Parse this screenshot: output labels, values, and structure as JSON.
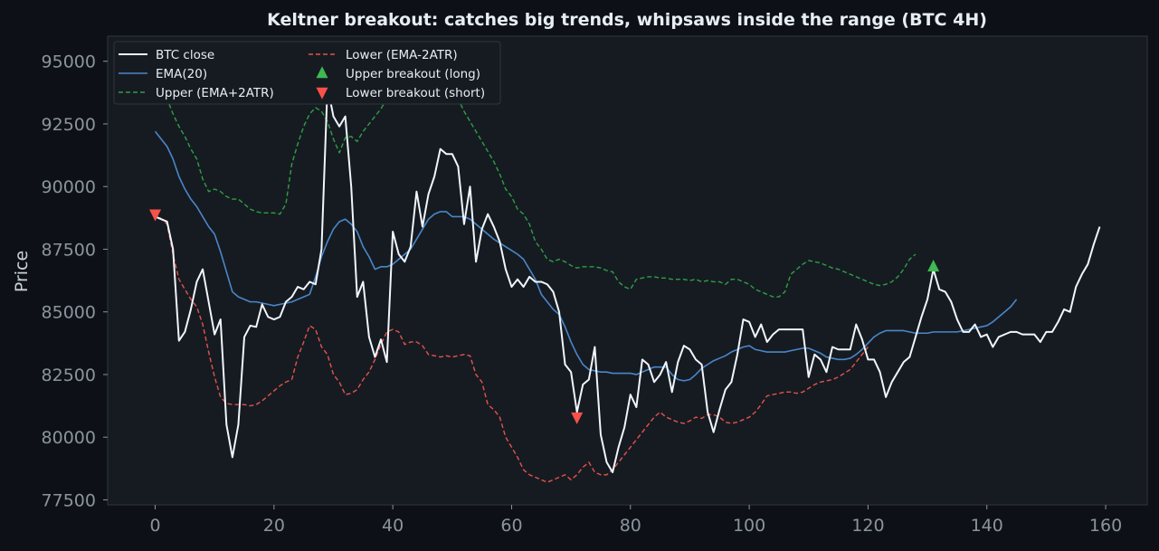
{
  "chart_data": {
    "type": "line",
    "title": "Keltner breakout: catches big trends, whipsaws inside the range (BTC 4H)",
    "xlabel": "",
    "ylabel": "Price",
    "xlim": [
      -8,
      167
    ],
    "ylim": [
      77300,
      96000
    ],
    "x_ticks": [
      0,
      20,
      40,
      60,
      80,
      100,
      120,
      140,
      160
    ],
    "y_ticks": [
      77500,
      80000,
      82500,
      85000,
      87500,
      90000,
      92500,
      95000
    ],
    "grid": false,
    "legend_position": "top-left",
    "colors": {
      "background": "#0d1117",
      "plot_background": "#161b22",
      "spine": "#30363d",
      "tick_text": "#8b949e",
      "title_text": "#e6edf3",
      "close": "#f0f6fc",
      "ema": "#4a86c8",
      "upper": "#2ea043",
      "lower": "#e5534b",
      "marker_long": "#3fb950",
      "marker_short": "#f85149"
    },
    "series": [
      {
        "name": "BTC close",
        "style": "solid",
        "values": [
          88800,
          88700,
          88600,
          87500,
          83850,
          84200,
          85100,
          86200,
          86700,
          85400,
          84100,
          84700,
          80500,
          79200,
          80500,
          84000,
          84450,
          84400,
          85300,
          84800,
          84700,
          84800,
          85400,
          85600,
          86000,
          85900,
          86200,
          86100,
          87500,
          94000,
          92800,
          92400,
          92800,
          90000,
          85600,
          86200,
          84000,
          83200,
          83900,
          83000,
          88200,
          87300,
          87000,
          87600,
          89800,
          88400,
          89700,
          90400,
          91500,
          91300,
          91300,
          90800,
          88500,
          90000,
          87000,
          88300,
          88900,
          88400,
          87800,
          86700,
          86000,
          86300,
          86000,
          86400,
          86200,
          86200,
          86100,
          85800,
          85000,
          82900,
          82600,
          81000,
          82100,
          82300,
          83600,
          80100,
          79000,
          78600,
          79600,
          80400,
          81700,
          81200,
          83100,
          82900,
          82200,
          82500,
          83000,
          81800,
          83000,
          83650,
          83500,
          83100,
          82900,
          81000,
          80200,
          81100,
          81900,
          82200,
          83300,
          84700,
          84600,
          84000,
          84500,
          83800,
          84100,
          84300,
          84300,
          84300,
          84300,
          84300,
          82400,
          83300,
          83100,
          82600,
          83600,
          83500,
          83500,
          83500,
          84500,
          83900,
          83100,
          83100,
          82600,
          81600,
          82200,
          82600,
          83000,
          83200,
          84000,
          84800,
          85500,
          86700,
          85900,
          85800,
          85400,
          84700,
          84200,
          84200,
          84500,
          84000,
          84100,
          83600,
          84000,
          84100,
          84200,
          84200,
          84100,
          84100,
          84100,
          83800,
          84200,
          84200,
          84600,
          85100,
          85000,
          86000,
          86500,
          86900,
          87700,
          88400
        ]
      },
      {
        "name": "EMA(20)",
        "style": "solid",
        "values": [
          92200,
          91900,
          91600,
          91100,
          90400,
          89900,
          89500,
          89200,
          88800,
          88400,
          88100,
          87400,
          86600,
          85800,
          85600,
          85500,
          85400,
          85400,
          85350,
          85300,
          85250,
          85300,
          85350,
          85400,
          85500,
          85600,
          85700,
          86400,
          87200,
          87800,
          88300,
          88600,
          88700,
          88500,
          88200,
          87600,
          87200,
          86700,
          86800,
          86800,
          86900,
          87100,
          87300,
          87500,
          87900,
          88300,
          88700,
          88900,
          89000,
          89000,
          88800,
          88800,
          88800,
          88700,
          88500,
          88300,
          88100,
          87900,
          87750,
          87600,
          87450,
          87300,
          87100,
          86700,
          86300,
          85700,
          85400,
          85100,
          84900,
          84400,
          83800,
          83300,
          82900,
          82700,
          82650,
          82600,
          82600,
          82550,
          82550,
          82550,
          82550,
          82500,
          82600,
          82700,
          82800,
          82800,
          82800,
          82500,
          82300,
          82250,
          82300,
          82500,
          82750,
          82900,
          83050,
          83150,
          83250,
          83400,
          83500,
          83600,
          83650,
          83500,
          83450,
          83400,
          83400,
          83400,
          83400,
          83450,
          83500,
          83550,
          83550,
          83450,
          83350,
          83200,
          83150,
          83100,
          83100,
          83150,
          83300,
          83500,
          83750,
          84000,
          84150,
          84250,
          84250,
          84250,
          84250,
          84200,
          84150,
          84150,
          84150,
          84200,
          84200,
          84200,
          84200,
          84200,
          84250,
          84300,
          84350,
          84400,
          84450,
          84600,
          84800,
          85000,
          85200,
          85500
        ]
      },
      {
        "name": "Upper (EMA+2ATR)",
        "style": "dashed",
        "values": [
          94300,
          94000,
          93500,
          92900,
          92400,
          92000,
          91500,
          91100,
          90300,
          89800,
          89900,
          89800,
          89600,
          89500,
          89500,
          89300,
          89100,
          89000,
          88950,
          88950,
          88950,
          88900,
          89300,
          90900,
          91700,
          92400,
          92900,
          93150,
          93000,
          92600,
          91900,
          91350,
          91950,
          92000,
          91800,
          92200,
          92500,
          92800,
          93100,
          93500,
          94000,
          94300,
          94600,
          94800,
          94900,
          95000,
          94800,
          94600,
          94300,
          94100,
          93800,
          93500,
          93000,
          92600,
          92200,
          91800,
          91400,
          91000,
          90500,
          89900,
          89600,
          89100,
          88900,
          88500,
          87800,
          87500,
          87100,
          87000,
          87100,
          87000,
          86850,
          86750,
          86800,
          86800,
          86800,
          86750,
          86650,
          86600,
          86200,
          86000,
          85900,
          86300,
          86350,
          86400,
          86400,
          86350,
          86350,
          86300,
          86300,
          86300,
          86250,
          86300,
          86200,
          86250,
          86200,
          86200,
          86100,
          86300,
          86300,
          86200,
          86100,
          85900,
          85800,
          85700,
          85600,
          85600,
          85800,
          86500,
          86700,
          86900,
          87050,
          87000,
          86950,
          86850,
          86750,
          86700,
          86600,
          86500,
          86400,
          86300,
          86200,
          86100,
          86050,
          86100,
          86200,
          86400,
          86700,
          87100,
          87300
        ]
      },
      {
        "name": "Lower (EMA-2ATR)",
        "style": "dashed",
        "values": [
          89000,
          88700,
          88500,
          87300,
          86300,
          85900,
          85500,
          85200,
          84500,
          83400,
          82400,
          81600,
          81350,
          81300,
          81300,
          81300,
          81250,
          81300,
          81450,
          81650,
          81850,
          82050,
          82200,
          82300,
          83200,
          83800,
          84450,
          84300,
          83600,
          83300,
          82500,
          82200,
          81700,
          81750,
          81900,
          82300,
          82600,
          83100,
          83700,
          84200,
          84300,
          84200,
          83700,
          83800,
          83800,
          83650,
          83300,
          83250,
          83200,
          83250,
          83200,
          83250,
          83300,
          83250,
          82500,
          82200,
          81300,
          81100,
          80800,
          80000,
          79600,
          79200,
          78700,
          78500,
          78400,
          78300,
          78200,
          78300,
          78400,
          78500,
          78300,
          78500,
          78800,
          79000,
          78600,
          78500,
          78500,
          78700,
          79000,
          79300,
          79600,
          79900,
          80200,
          80500,
          80800,
          81000,
          80800,
          80700,
          80600,
          80550,
          80650,
          80800,
          80750,
          80900,
          80900,
          80800,
          80600,
          80550,
          80600,
          80700,
          80800,
          81000,
          81300,
          81650,
          81700,
          81750,
          81800,
          81800,
          81750,
          81800,
          81950,
          82100,
          82200,
          82250,
          82300,
          82400,
          82550,
          82700,
          83000,
          83300,
          83600
        ]
      }
    ],
    "markers": [
      {
        "name": "Upper breakout (long)",
        "shape": "triangle-up",
        "points": [
          [
            131,
            86800
          ]
        ]
      },
      {
        "name": "Lower breakout (short)",
        "shape": "triangle-down",
        "points": [
          [
            0,
            88900
          ],
          [
            71,
            80800
          ]
        ]
      }
    ],
    "legend": [
      {
        "label": "BTC close",
        "kind": "line-solid",
        "color": "#f0f6fc"
      },
      {
        "label": "EMA(20)",
        "kind": "line-solid",
        "color": "#4a86c8"
      },
      {
        "label": "Upper (EMA+2ATR)",
        "kind": "line-dashed",
        "color": "#2ea043"
      },
      {
        "label": "Lower (EMA-2ATR)",
        "kind": "line-dashed",
        "color": "#e5534b"
      },
      {
        "label": "Upper breakout (long)",
        "kind": "triangle-up",
        "color": "#3fb950"
      },
      {
        "label": "Lower breakout (short)",
        "kind": "triangle-down",
        "color": "#f85149"
      }
    ]
  }
}
